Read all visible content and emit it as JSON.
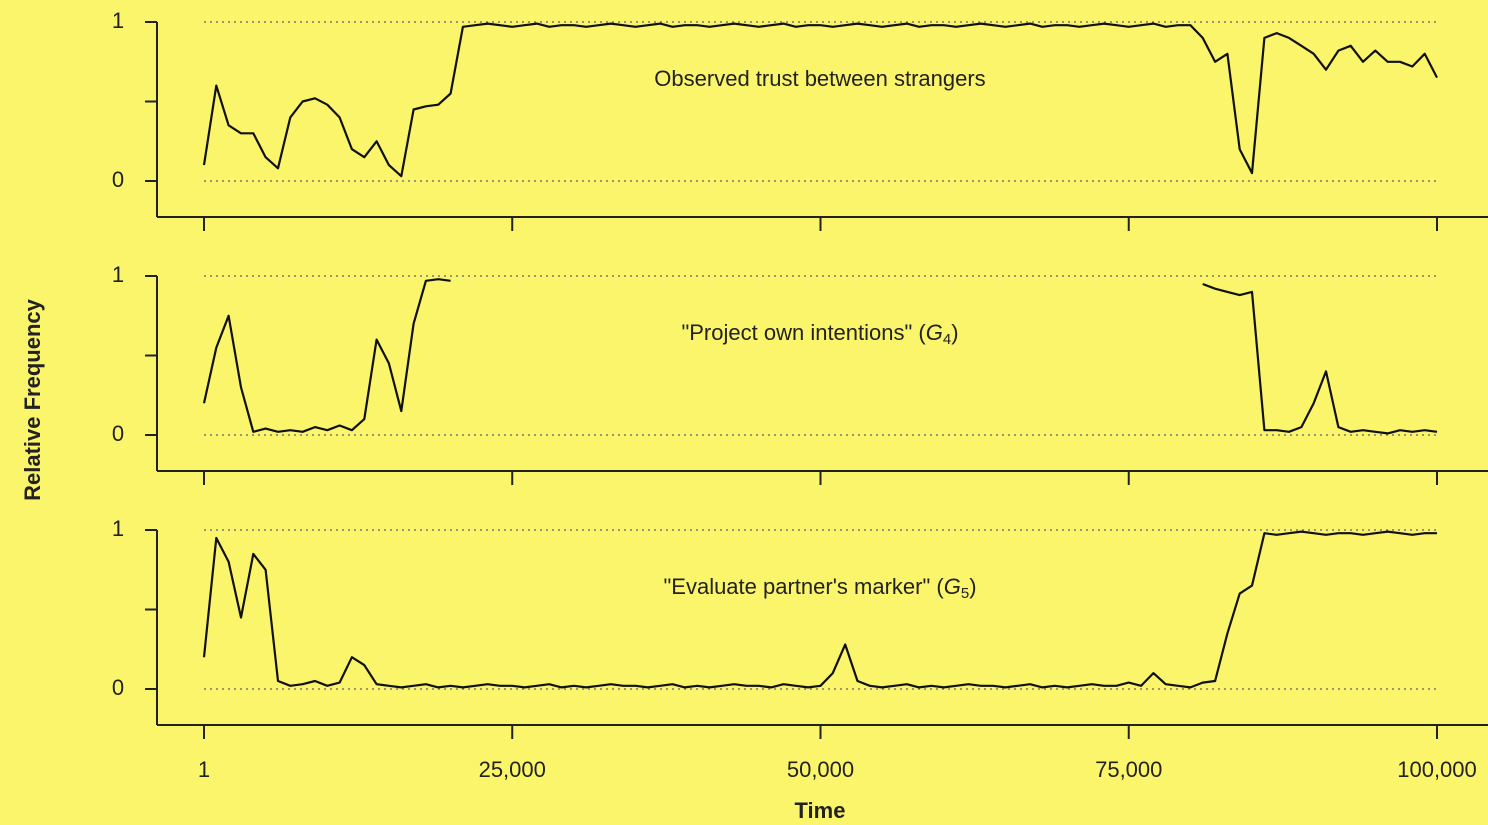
{
  "chart_data": {
    "type": "line",
    "xlabel": "Time",
    "ylabel": "Relative Frequency",
    "color": "#111111",
    "grid": true,
    "xlim": [
      1,
      100000
    ],
    "xticks": [
      1,
      {
        "value": 25000,
        "label": "25,000"
      },
      {
        "value": 50000,
        "label": "50,000"
      },
      {
        "value": 75000,
        "label": "75,000"
      },
      {
        "value": 100000,
        "label": "100,000"
      }
    ],
    "ylim": [
      0,
      1
    ],
    "yticks": [
      0,
      1
    ],
    "yminor_ticks": [
      0.5
    ],
    "x": [
      1,
      1000,
      2000,
      3000,
      4000,
      5000,
      6000,
      7000,
      8000,
      9000,
      10000,
      11000,
      12000,
      13000,
      14000,
      15000,
      16000,
      17000,
      18000,
      19000,
      20000,
      21000,
      22000,
      23000,
      24000,
      25000,
      26000,
      27000,
      28000,
      29000,
      30000,
      31000,
      32000,
      33000,
      34000,
      35000,
      36000,
      37000,
      38000,
      39000,
      40000,
      41000,
      42000,
      43000,
      44000,
      45000,
      46000,
      47000,
      48000,
      49000,
      50000,
      51000,
      52000,
      53000,
      54000,
      55000,
      56000,
      57000,
      58000,
      59000,
      60000,
      61000,
      62000,
      63000,
      64000,
      65000,
      66000,
      67000,
      68000,
      69000,
      70000,
      71000,
      72000,
      73000,
      74000,
      75000,
      76000,
      77000,
      78000,
      79000,
      80000,
      81000,
      82000,
      83000,
      84000,
      85000,
      86000,
      87000,
      88000,
      89000,
      90000,
      91000,
      92000,
      93000,
      94000,
      95000,
      96000,
      97000,
      98000,
      99000,
      100000
    ],
    "panels": [
      {
        "annotation": {
          "text": "Observed trust between strangers"
        },
        "values": [
          0.1,
          0.6,
          0.35,
          0.3,
          0.3,
          0.15,
          0.08,
          0.4,
          0.5,
          0.52,
          0.48,
          0.4,
          0.2,
          0.15,
          0.25,
          0.1,
          0.03,
          0.45,
          0.47,
          0.48,
          0.55,
          0.97,
          0.98,
          0.99,
          0.98,
          0.97,
          0.98,
          0.99,
          0.97,
          0.98,
          0.98,
          0.97,
          0.98,
          0.99,
          0.98,
          0.97,
          0.98,
          0.99,
          0.97,
          0.98,
          0.98,
          0.97,
          0.98,
          0.99,
          0.98,
          0.97,
          0.98,
          0.99,
          0.97,
          0.98,
          0.98,
          0.97,
          0.98,
          0.99,
          0.98,
          0.97,
          0.98,
          0.99,
          0.97,
          0.98,
          0.98,
          0.97,
          0.98,
          0.99,
          0.98,
          0.97,
          0.98,
          0.99,
          0.97,
          0.98,
          0.98,
          0.97,
          0.98,
          0.99,
          0.98,
          0.97,
          0.98,
          0.99,
          0.97,
          0.98,
          0.98,
          0.9,
          0.75,
          0.8,
          0.2,
          0.05,
          0.9,
          0.93,
          0.9,
          0.85,
          0.8,
          0.7,
          0.82,
          0.85,
          0.75,
          0.82,
          0.75,
          0.75,
          0.72,
          0.8,
          0.65
        ]
      },
      {
        "annotation": {
          "text": "\"Project own intentions\" (",
          "symbol": "G",
          "subscript": "4",
          "close": ")"
        },
        "values": [
          0.2,
          0.55,
          0.75,
          0.3,
          0.02,
          0.04,
          0.02,
          0.03,
          0.02,
          0.05,
          0.03,
          0.06,
          0.03,
          0.1,
          0.6,
          0.45,
          0.15,
          0.7,
          0.97,
          0.98,
          0.97,
          null,
          null,
          null,
          null,
          null,
          null,
          null,
          null,
          null,
          null,
          null,
          null,
          null,
          null,
          null,
          null,
          null,
          null,
          null,
          null,
          null,
          null,
          null,
          null,
          null,
          null,
          null,
          null,
          null,
          null,
          null,
          null,
          null,
          null,
          null,
          null,
          null,
          null,
          null,
          null,
          null,
          null,
          null,
          null,
          null,
          null,
          null,
          null,
          null,
          null,
          null,
          null,
          null,
          null,
          null,
          null,
          null,
          null,
          null,
          null,
          0.95,
          0.92,
          0.9,
          0.88,
          0.9,
          0.03,
          0.03,
          0.02,
          0.05,
          0.2,
          0.4,
          0.05,
          0.02,
          0.03,
          0.02,
          0.01,
          0.03,
          0.02,
          0.03,
          0.02
        ]
      },
      {
        "annotation": {
          "text": "\"Evaluate partner's marker\" (",
          "symbol": "G",
          "subscript": "5",
          "close": ")"
        },
        "values": [
          0.2,
          0.95,
          0.8,
          0.45,
          0.85,
          0.75,
          0.05,
          0.02,
          0.03,
          0.05,
          0.02,
          0.04,
          0.2,
          0.15,
          0.03,
          0.02,
          0.01,
          0.02,
          0.03,
          0.01,
          0.02,
          0.01,
          0.02,
          0.03,
          0.02,
          0.02,
          0.01,
          0.02,
          0.03,
          0.01,
          0.02,
          0.01,
          0.02,
          0.03,
          0.02,
          0.02,
          0.01,
          0.02,
          0.03,
          0.01,
          0.02,
          0.01,
          0.02,
          0.03,
          0.02,
          0.02,
          0.01,
          0.03,
          0.02,
          0.01,
          0.02,
          0.1,
          0.28,
          0.05,
          0.02,
          0.01,
          0.02,
          0.03,
          0.01,
          0.02,
          0.01,
          0.02,
          0.03,
          0.02,
          0.02,
          0.01,
          0.02,
          0.03,
          0.01,
          0.02,
          0.01,
          0.02,
          0.03,
          0.02,
          0.02,
          0.04,
          0.02,
          0.1,
          0.03,
          0.02,
          0.01,
          0.04,
          0.05,
          0.35,
          0.6,
          0.65,
          0.98,
          0.97,
          0.98,
          0.99,
          0.98,
          0.97,
          0.98,
          0.98,
          0.97,
          0.98,
          0.99,
          0.98,
          0.97,
          0.98,
          0.98
        ]
      }
    ]
  }
}
